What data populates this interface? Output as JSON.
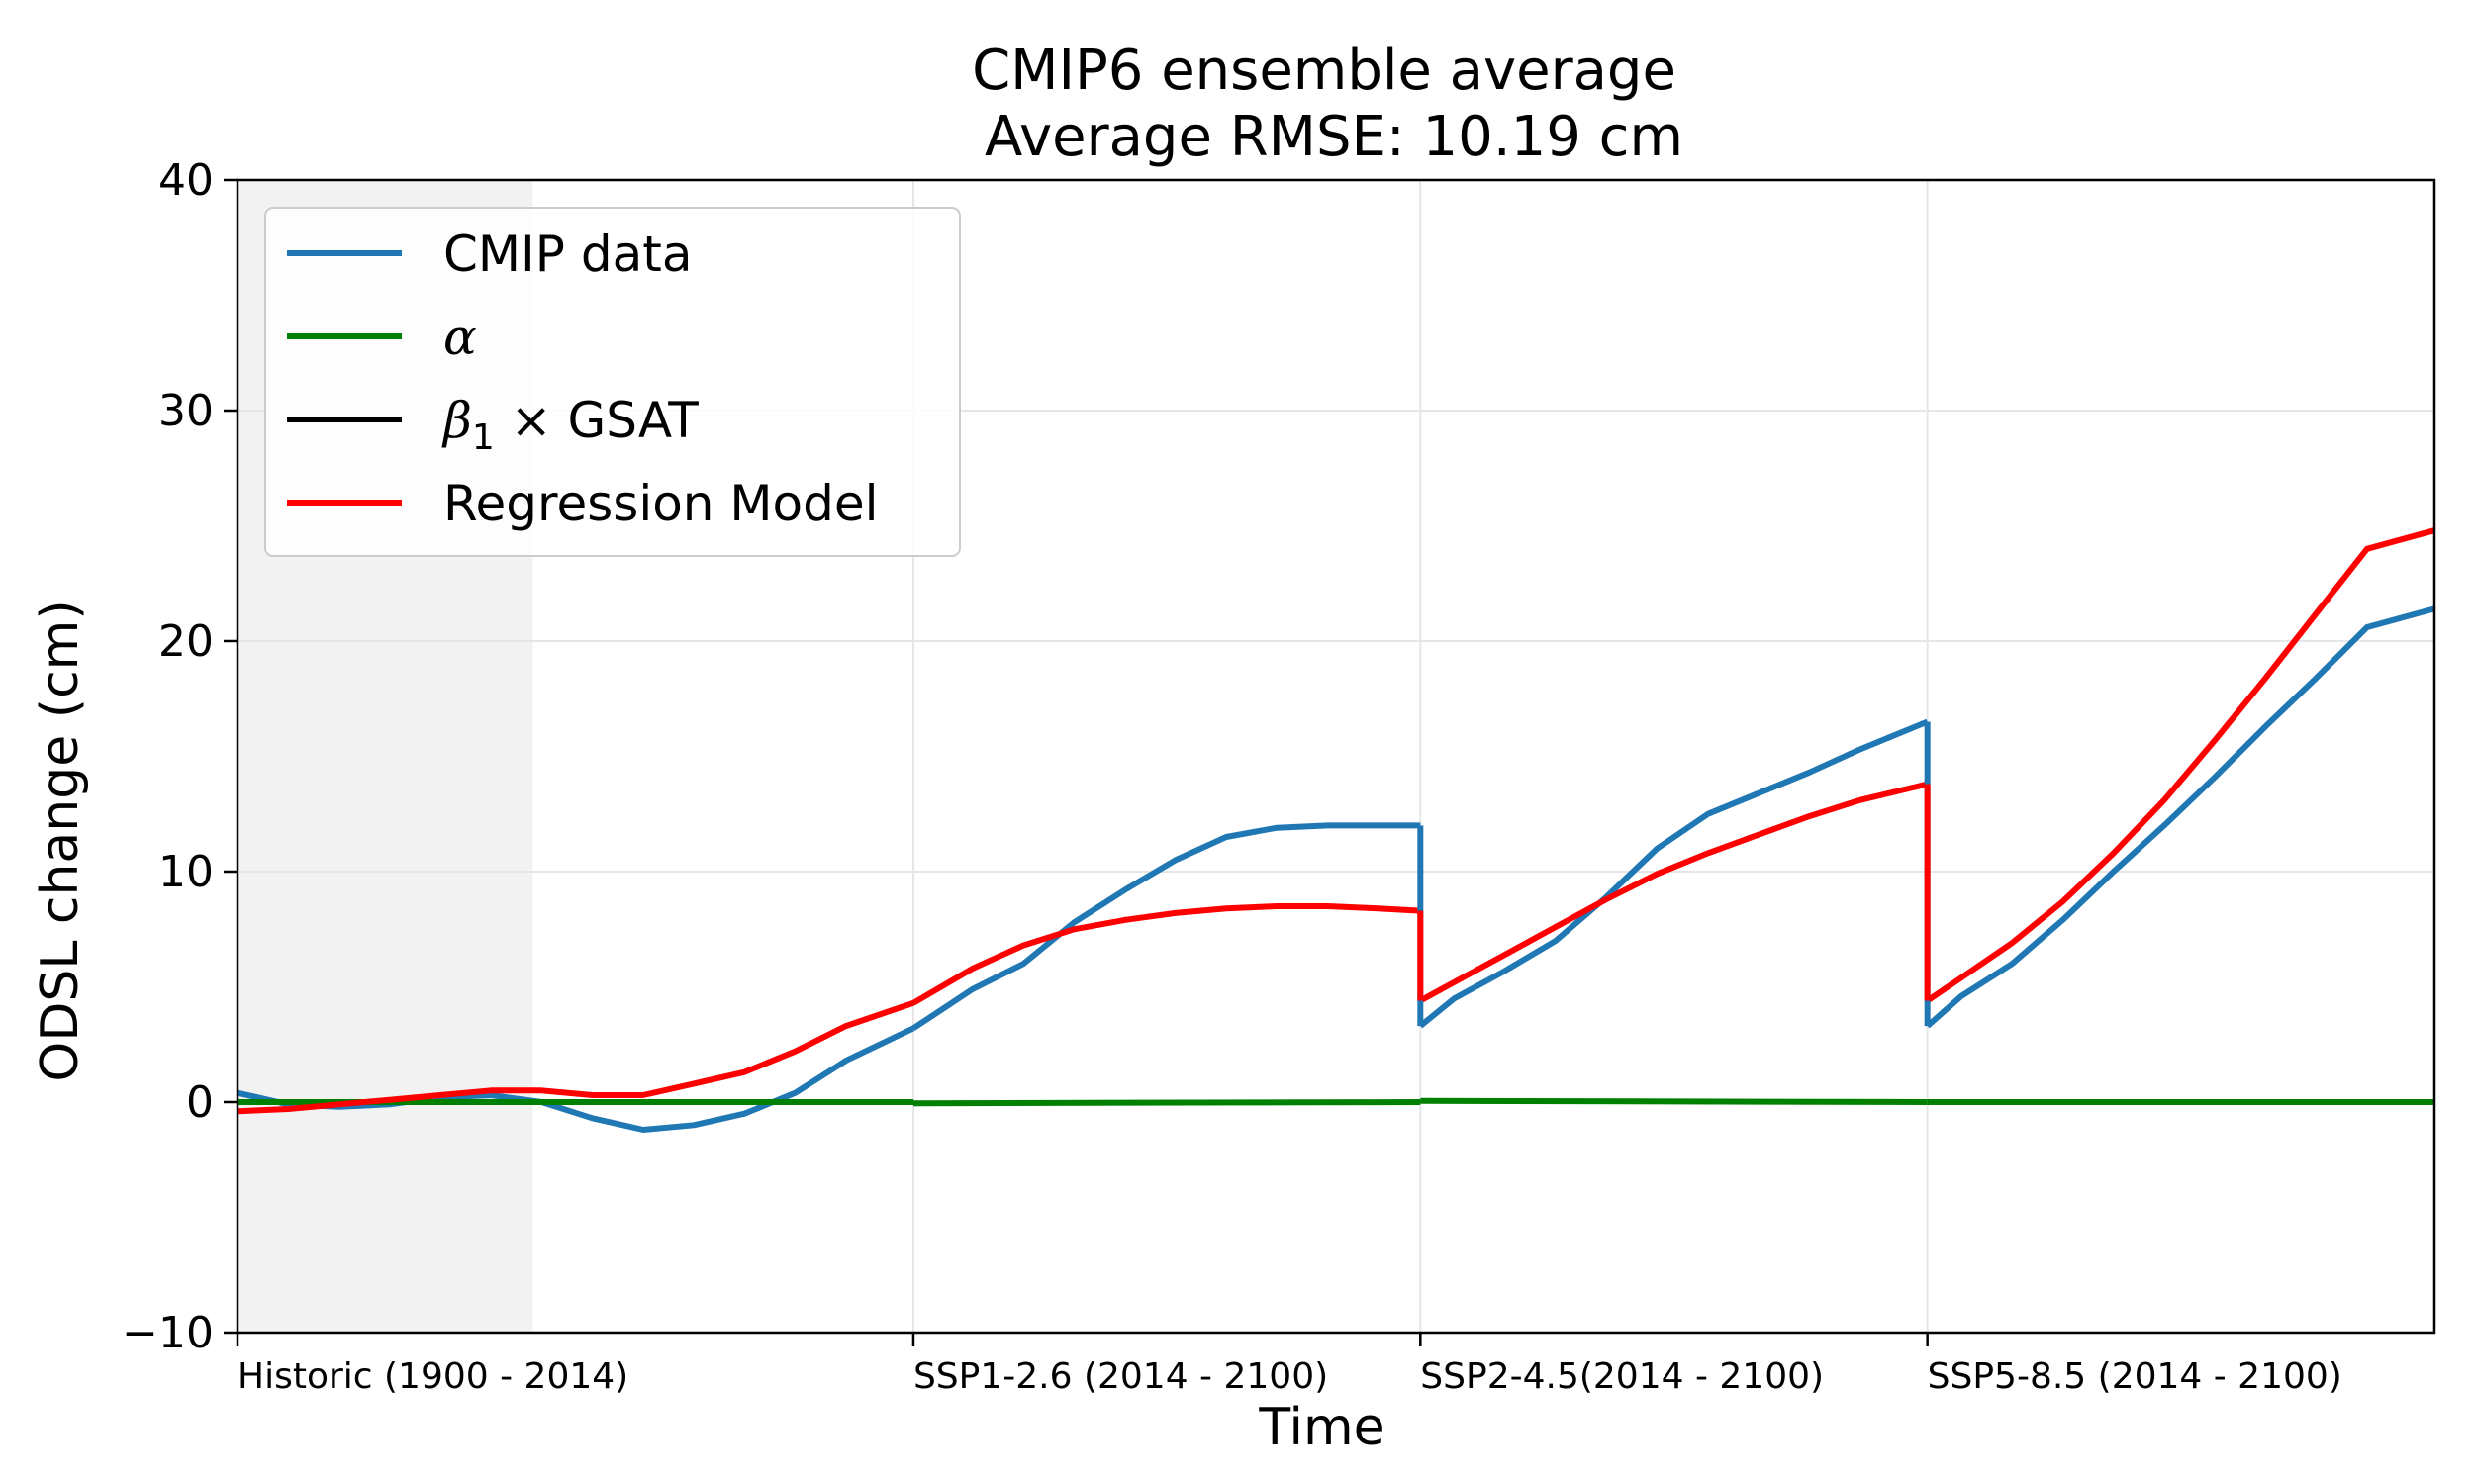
{
  "chart_data": {
    "type": "line",
    "title_line1": "CMIP6 ensemble average",
    "title_line2": "Average RMSE: 10.19 cm",
    "xlabel": "Time",
    "ylabel": "ODSL change (cm)",
    "ylim": [
      -10,
      40
    ],
    "yticks": [
      -10,
      0,
      10,
      20,
      30,
      40
    ],
    "ytick_labels": [
      "−10",
      "0",
      "10",
      "20",
      "30",
      "40"
    ],
    "grid": true,
    "legend_position": "top-left",
    "historic_shading": {
      "color": "#f2f2f2"
    },
    "segments": [
      {
        "label": "Historic (1900 - 2014)",
        "x_range": [
          0,
          1.333
        ]
      },
      {
        "label": "SSP1-2.6 (2014 - 2100)",
        "x_range": [
          1.333,
          2.333
        ]
      },
      {
        "label": "SSP2-4.5(2014 - 2100)",
        "x_range": [
          2.333,
          3.333
        ]
      },
      {
        "label": "SSP5-8.5 (2014 - 2100)",
        "x_range": [
          3.333,
          4.333
        ]
      }
    ],
    "series": [
      {
        "name": "CMIP data",
        "color": "#1f77b4",
        "segments": [
          [
            [
              0,
              0.4
            ],
            [
              0.1,
              -0.1
            ],
            [
              0.2,
              -0.2
            ],
            [
              0.3,
              -0.1
            ],
            [
              0.4,
              0.2
            ],
            [
              0.5,
              0.3
            ],
            [
              0.6,
              0
            ],
            [
              0.7,
              -0.7
            ],
            [
              0.8,
              -1.2
            ],
            [
              0.9,
              -1.0
            ],
            [
              1.0,
              -0.5
            ],
            [
              1.1,
              0.4
            ],
            [
              1.2,
              1.8
            ],
            [
              1.333,
              3.2
            ]
          ],
          [
            [
              1.333,
              3.2
            ],
            [
              1.45,
              4.9
            ],
            [
              1.55,
              6.0
            ],
            [
              1.65,
              7.8
            ],
            [
              1.75,
              9.2
            ],
            [
              1.85,
              10.5
            ],
            [
              1.95,
              11.5
            ],
            [
              2.05,
              11.9
            ],
            [
              2.15,
              12.0
            ],
            [
              2.25,
              12.0
            ],
            [
              2.333,
              12.0
            ]
          ],
          [
            [
              2.333,
              3.3
            ],
            [
              2.4,
              4.5
            ],
            [
              2.5,
              5.7
            ],
            [
              2.6,
              7.0
            ],
            [
              2.7,
              8.9
            ],
            [
              2.8,
              11.0
            ],
            [
              2.9,
              12.5
            ],
            [
              3.0,
              13.4
            ],
            [
              3.1,
              14.3
            ],
            [
              3.2,
              15.3
            ],
            [
              3.333,
              16.5
            ]
          ],
          [
            [
              3.333,
              3.3
            ],
            [
              3.4,
              4.6
            ],
            [
              3.5,
              6.0
            ],
            [
              3.6,
              7.9
            ],
            [
              3.7,
              10.0
            ],
            [
              3.8,
              12.0
            ],
            [
              3.9,
              14.1
            ],
            [
              4.0,
              16.3
            ],
            [
              4.1,
              18.4
            ],
            [
              4.2,
              20.6
            ],
            [
              4.333,
              21.4
            ]
          ]
        ]
      },
      {
        "name": "α",
        "color": "#008000",
        "segments": [
          [
            [
              0,
              0
            ],
            [
              1.333,
              0
            ]
          ],
          [
            [
              1.333,
              -0.05
            ],
            [
              2.333,
              0
            ]
          ],
          [
            [
              2.333,
              0.05
            ],
            [
              3.333,
              0
            ]
          ],
          [
            [
              3.333,
              0
            ],
            [
              4.333,
              0
            ]
          ]
        ]
      },
      {
        "name": "β₁ × GSAT",
        "color": "#000000",
        "segments": [
          [
            [
              0,
              -0.4
            ],
            [
              0.1,
              -0.3
            ],
            [
              0.2,
              -0.1
            ],
            [
              0.3,
              0.1
            ],
            [
              0.4,
              0.3
            ],
            [
              0.5,
              0.5
            ],
            [
              0.6,
              0.5
            ],
            [
              0.7,
              0.3
            ],
            [
              0.8,
              0.3
            ],
            [
              0.9,
              0.8
            ],
            [
              1.0,
              1.3
            ],
            [
              1.1,
              2.2
            ],
            [
              1.2,
              3.3
            ],
            [
              1.333,
              4.3
            ]
          ],
          [
            [
              1.333,
              4.3
            ],
            [
              1.45,
              5.8
            ],
            [
              1.55,
              6.8
            ],
            [
              1.65,
              7.5
            ],
            [
              1.75,
              7.9
            ],
            [
              1.85,
              8.2
            ],
            [
              1.95,
              8.4
            ],
            [
              2.05,
              8.5
            ],
            [
              2.15,
              8.5
            ],
            [
              2.25,
              8.4
            ],
            [
              2.333,
              8.3
            ]
          ],
          [
            [
              2.333,
              4.4
            ],
            [
              2.4,
              5.2
            ],
            [
              2.5,
              6.4
            ],
            [
              2.6,
              7.6
            ],
            [
              2.7,
              8.8
            ],
            [
              2.8,
              9.9
            ],
            [
              2.9,
              10.8
            ],
            [
              3.0,
              11.6
            ],
            [
              3.1,
              12.4
            ],
            [
              3.2,
              13.1
            ],
            [
              3.333,
              13.8
            ]
          ],
          [
            [
              3.333,
              4.4
            ],
            [
              3.4,
              5.4
            ],
            [
              3.5,
              6.9
            ],
            [
              3.6,
              8.7
            ],
            [
              3.7,
              10.8
            ],
            [
              3.8,
              13.1
            ],
            [
              3.9,
              15.7
            ],
            [
              4.0,
              18.4
            ],
            [
              4.1,
              21.2
            ],
            [
              4.2,
              24.0
            ],
            [
              4.333,
              24.8
            ]
          ]
        ]
      },
      {
        "name": "Regression Model",
        "color": "#ff0000",
        "segments": [
          [
            [
              0,
              -0.4
            ],
            [
              0.1,
              -0.3
            ],
            [
              0.2,
              -0.1
            ],
            [
              0.3,
              0.1
            ],
            [
              0.4,
              0.3
            ],
            [
              0.5,
              0.5
            ],
            [
              0.6,
              0.5
            ],
            [
              0.7,
              0.3
            ],
            [
              0.8,
              0.3
            ],
            [
              0.9,
              0.8
            ],
            [
              1.0,
              1.3
            ],
            [
              1.1,
              2.2
            ],
            [
              1.2,
              3.3
            ],
            [
              1.333,
              4.3
            ]
          ],
          [
            [
              1.333,
              4.3
            ],
            [
              1.45,
              5.8
            ],
            [
              1.55,
              6.8
            ],
            [
              1.65,
              7.5
            ],
            [
              1.75,
              7.9
            ],
            [
              1.85,
              8.2
            ],
            [
              1.95,
              8.4
            ],
            [
              2.05,
              8.5
            ],
            [
              2.15,
              8.5
            ],
            [
              2.25,
              8.4
            ],
            [
              2.333,
              8.3
            ]
          ],
          [
            [
              2.333,
              4.4
            ],
            [
              2.4,
              5.2
            ],
            [
              2.5,
              6.4
            ],
            [
              2.6,
              7.6
            ],
            [
              2.7,
              8.8
            ],
            [
              2.8,
              9.9
            ],
            [
              2.9,
              10.8
            ],
            [
              3.0,
              11.6
            ],
            [
              3.1,
              12.4
            ],
            [
              3.2,
              13.1
            ],
            [
              3.333,
              13.8
            ]
          ],
          [
            [
              3.333,
              4.4
            ],
            [
              3.4,
              5.4
            ],
            [
              3.5,
              6.9
            ],
            [
              3.6,
              8.7
            ],
            [
              3.7,
              10.8
            ],
            [
              3.8,
              13.1
            ],
            [
              3.9,
              15.7
            ],
            [
              4.0,
              18.4
            ],
            [
              4.1,
              21.2
            ],
            [
              4.2,
              24.0
            ],
            [
              4.333,
              24.8
            ]
          ]
        ]
      }
    ],
    "legend": {
      "entries": [
        {
          "label": "CMIP data",
          "color": "#1f77b4"
        },
        {
          "label": "α",
          "color": "#008000"
        },
        {
          "label_math": "β",
          "label_sub": "1",
          "label_rest": " ×  GSAT",
          "color": "#000000"
        },
        {
          "label": "Regression Model",
          "color": "#ff0000"
        }
      ]
    }
  }
}
